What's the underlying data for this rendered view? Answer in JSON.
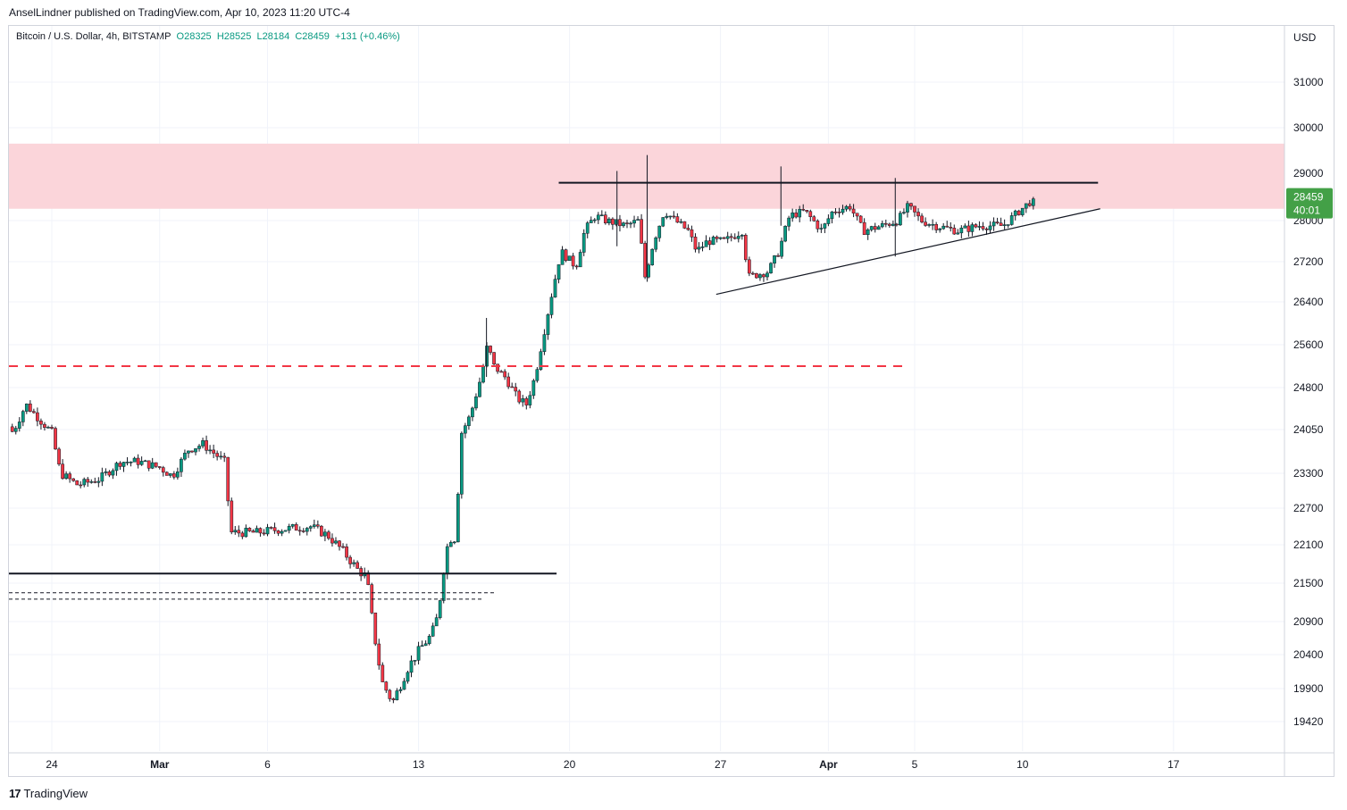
{
  "header": {
    "publisher": "AnselLindner published on TradingView.com, Apr 10, 2023 11:20 UTC-4"
  },
  "legend": {
    "symbol": "Bitcoin / U.S. Dollar, 4h, BITSTAMP",
    "open": "O28325",
    "high": "H28525",
    "low": "L28184",
    "close": "C28459",
    "change": "+131 (+0.46%)"
  },
  "footer": {
    "logo": "17",
    "brand": "TradingView"
  },
  "colors": {
    "up": "#089981",
    "down": "#f23645",
    "resistance_zone": "#fbd5da",
    "grid": "#f0f3fa",
    "axis_text": "#131722",
    "last_price_bg": "#43a047"
  },
  "chart_data": {
    "type": "candlestick",
    "axis": {
      "currency": "USD"
    },
    "price_ticks": [
      31000,
      30000,
      29000,
      28000,
      27200,
      26400,
      25600,
      24800,
      24050,
      23300,
      22700,
      22100,
      21500,
      20900,
      20400,
      19900,
      19420
    ],
    "time_ticks": [
      {
        "label": "24",
        "day": 0,
        "bold": false
      },
      {
        "label": "Mar",
        "day": 5,
        "bold": true
      },
      {
        "label": "6",
        "day": 10,
        "bold": false
      },
      {
        "label": "13",
        "day": 17,
        "bold": false
      },
      {
        "label": "20",
        "day": 24,
        "bold": false
      },
      {
        "label": "27",
        "day": 31,
        "bold": false
      },
      {
        "label": "Apr",
        "day": 36,
        "bold": true
      },
      {
        "label": "5",
        "day": 40,
        "bold": false
      },
      {
        "label": "10",
        "day": 45,
        "bold": false
      },
      {
        "label": "17",
        "day": 52,
        "bold": false
      }
    ],
    "last_price": {
      "price": "28459",
      "countdown": "40:01"
    },
    "resistance_zone": {
      "low": 28250,
      "high": 29650
    },
    "lines": [
      {
        "name": "resistance-line",
        "price": 28800,
        "from_day": 23.5,
        "to_day": 48.5,
        "style": "solid",
        "color": "#131722",
        "width": 2
      },
      {
        "name": "support-level-line",
        "price": 21650,
        "from_day": -2,
        "to_day": 23.4,
        "style": "solid",
        "color": "#131722",
        "width": 2
      },
      {
        "name": "red-dashed-level",
        "price": 25200,
        "from_day": -2,
        "to_day": 39.7,
        "style": "dashed",
        "color": "#f23645",
        "width": 2
      },
      {
        "name": "dotted-level-1",
        "price": 21350,
        "from_day": -2,
        "to_day": 20.5,
        "style": "dotted",
        "color": "#131722",
        "width": 1
      },
      {
        "name": "dotted-level-2",
        "price": 21250,
        "from_day": -2,
        "to_day": 20,
        "style": "dotted",
        "color": "#131722",
        "width": 1
      }
    ],
    "trendline": {
      "from": {
        "day": 30.8,
        "price": 26550
      },
      "to": {
        "day": 48.6,
        "price": 28250
      }
    },
    "path_points": [
      [
        -2,
        24100
      ],
      [
        -1.8,
        24000
      ],
      [
        -1.2,
        24500
      ],
      [
        -0.5,
        24200
      ],
      [
        0,
        24000
      ],
      [
        0.4,
        23300
      ],
      [
        1.2,
        23100
      ],
      [
        2.2,
        23200
      ],
      [
        3.2,
        23500
      ],
      [
        4,
        23500
      ],
      [
        5,
        23400
      ],
      [
        5.6,
        23250
      ],
      [
        6.3,
        23700
      ],
      [
        7,
        23800
      ],
      [
        8,
        23500
      ],
      [
        8.3,
        22300
      ],
      [
        9.5,
        22300
      ],
      [
        10.5,
        22350
      ],
      [
        12,
        22400
      ],
      [
        12.8,
        22250
      ],
      [
        13.5,
        22000
      ],
      [
        14.2,
        21700
      ],
      [
        14.6,
        21600
      ],
      [
        14.9,
        20800
      ],
      [
        15.3,
        20000
      ],
      [
        15.8,
        19700
      ],
      [
        16.5,
        20200
      ],
      [
        17.1,
        20500
      ],
      [
        17.6,
        20700
      ],
      [
        17.9,
        21000
      ],
      [
        18.2,
        21800
      ],
      [
        18.4,
        22200
      ],
      [
        18.7,
        22200
      ],
      [
        19,
        24000
      ],
      [
        19.4,
        24300
      ],
      [
        19.9,
        25000
      ],
      [
        20.2,
        25600
      ],
      [
        20.5,
        25200
      ],
      [
        21,
        25000
      ],
      [
        21.6,
        24600
      ],
      [
        22,
        24500
      ],
      [
        22.4,
        25000
      ],
      [
        22.8,
        25800
      ],
      [
        23.2,
        26600
      ],
      [
        23.6,
        27400
      ],
      [
        24.3,
        27100
      ],
      [
        24.7,
        27800
      ],
      [
        25.2,
        28100
      ],
      [
        25.7,
        28000
      ],
      [
        26.6,
        27900
      ],
      [
        27.2,
        28000
      ],
      [
        27.5,
        26900
      ],
      [
        27.9,
        27600
      ],
      [
        28.4,
        28200
      ],
      [
        28.9,
        28000
      ],
      [
        29.5,
        27800
      ],
      [
        29.9,
        27400
      ],
      [
        30.4,
        27600
      ],
      [
        31.2,
        27600
      ],
      [
        32,
        27800
      ],
      [
        32.3,
        26900
      ],
      [
        33.2,
        27000
      ],
      [
        33.7,
        27400
      ],
      [
        34.2,
        28100
      ],
      [
        34.9,
        28200
      ],
      [
        35.7,
        27800
      ],
      [
        36.2,
        28200
      ],
      [
        37,
        28300
      ],
      [
        37.6,
        27800
      ],
      [
        38.5,
        27900
      ],
      [
        39.2,
        28000
      ],
      [
        39.7,
        28300
      ],
      [
        40.3,
        28000
      ],
      [
        41,
        27900
      ],
      [
        42,
        27800
      ],
      [
        43,
        27900
      ],
      [
        44.1,
        27900
      ],
      [
        44.6,
        28100
      ],
      [
        45.5,
        28459
      ]
    ],
    "annotated_wicks": [
      {
        "day": 26.2,
        "high": 29050,
        "low": 27500
      },
      {
        "day": 27.6,
        "high": 29400,
        "low": 26800
      },
      {
        "day": 33.8,
        "high": 29150,
        "low": 27900
      },
      {
        "day": 39.1,
        "high": 28900,
        "low": 27300
      },
      {
        "day": 20.15,
        "high": 26100,
        "low": 25000
      }
    ]
  }
}
